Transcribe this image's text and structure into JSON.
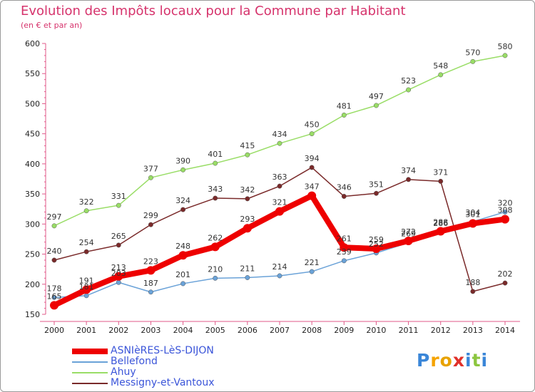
{
  "chart_data": {
    "type": "line",
    "title": "Evolution des Impôts locaux pour la Commune par Habitant",
    "subtitle": "(en € et par an)",
    "xlabel": "",
    "ylabel": "",
    "categories": [
      "2000",
      "2001",
      "2002",
      "2003",
      "2004",
      "2005",
      "2006",
      "2007",
      "2008",
      "2009",
      "2010",
      "2011",
      "2012",
      "2013",
      "2014"
    ],
    "ylim": [
      150,
      600
    ],
    "yticks": [
      150,
      200,
      250,
      300,
      350,
      400,
      450,
      500,
      550,
      600
    ],
    "grid": false,
    "legend_position": "bottom-left",
    "series": [
      {
        "name": "Messigny-et-Vantoux",
        "color": "#7a2a2a",
        "values": [
          240,
          254,
          265,
          299,
          324,
          343,
          342,
          363,
          394,
          346,
          351,
          374,
          371,
          188,
          202
        ]
      },
      {
        "name": "Ahuy",
        "color": "#99dd66",
        "values": [
          297,
          322,
          331,
          377,
          390,
          401,
          415,
          434,
          450,
          481,
          497,
          523,
          548,
          570,
          580
        ]
      },
      {
        "name": "Bellefond",
        "color": "#6aa2d8",
        "values": [
          178,
          181,
          203,
          187,
          201,
          210,
          211,
          214,
          221,
          239,
          252,
          269,
          286,
          304,
          320
        ]
      },
      {
        "name": "ASNIèRES-LèS-DIJON",
        "color": "#ee0000",
        "values": [
          165,
          191,
          213,
          223,
          248,
          262,
          293,
          321,
          347,
          261,
          259,
          272,
          288,
          301,
          308
        ]
      }
    ],
    "legend_labels": [
      "ASNIèRES-LèS-DIJON",
      "Bellefond",
      "Ahuy",
      "Messigny-et-Vantoux"
    ]
  },
  "logo": {
    "letters": [
      "P",
      "r",
      "o",
      "x",
      "i",
      "t",
      "i"
    ],
    "colors": [
      "#3a86d8",
      "#f5a300",
      "#e8a200",
      "#e0302a",
      "#3a86d8",
      "#8cc63f",
      "#3a86d8"
    ]
  }
}
